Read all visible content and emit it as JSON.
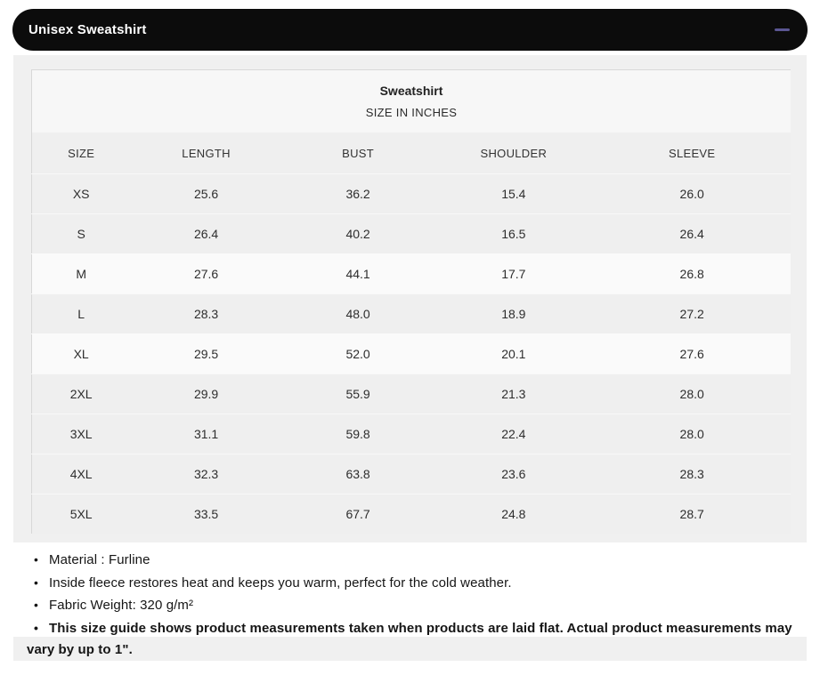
{
  "header": {
    "title": "Unisex Sweatshirt",
    "collapse_icon": "minus-icon",
    "bar_color": "#0c0c0c",
    "accent_color": "#5b5692"
  },
  "table": {
    "title": "Sweatshirt",
    "subtitle": "SIZE IN INCHES",
    "columns": [
      "SIZE",
      "LENGTH",
      "BUST",
      "SHOULDER",
      "SLEEVE"
    ],
    "rows": [
      {
        "size": "XS",
        "length": "25.6",
        "bust": "36.2",
        "shoulder": "15.4",
        "sleeve": "26.0"
      },
      {
        "size": "S",
        "length": "26.4",
        "bust": "40.2",
        "shoulder": "16.5",
        "sleeve": "26.4"
      },
      {
        "size": "M",
        "length": "27.6",
        "bust": "44.1",
        "shoulder": "17.7",
        "sleeve": "26.8"
      },
      {
        "size": "L",
        "length": "28.3",
        "bust": "48.0",
        "shoulder": "18.9",
        "sleeve": "27.2"
      },
      {
        "size": "XL",
        "length": "29.5",
        "bust": "52.0",
        "shoulder": "20.1",
        "sleeve": "27.6"
      },
      {
        "size": "2XL",
        "length": "29.9",
        "bust": "55.9",
        "shoulder": "21.3",
        "sleeve": "28.0"
      },
      {
        "size": "3XL",
        "length": "31.1",
        "bust": "59.8",
        "shoulder": "22.4",
        "sleeve": "28.0"
      },
      {
        "size": "4XL",
        "length": "32.3",
        "bust": "63.8",
        "shoulder": "23.6",
        "sleeve": "28.3"
      },
      {
        "size": "5XL",
        "length": "33.5",
        "bust": "67.7",
        "shoulder": "24.8",
        "sleeve": "28.7"
      }
    ]
  },
  "notes": {
    "bullet_glyph": "•",
    "items": [
      "Material : Furline",
      "Inside fleece restores heat and keeps you warm, perfect for the cold weather.",
      "Fabric Weight: 320 g/m²"
    ],
    "note_bold_line1": "This size guide shows product measurements taken when products are laid flat. Actual product measurements may",
    "note_bold_line2": "vary by up to 1\"."
  }
}
